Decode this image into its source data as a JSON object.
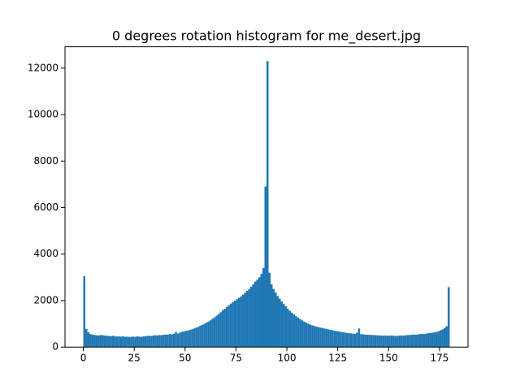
{
  "chart_data": {
    "type": "histogram",
    "title": "0 degrees rotation histogram for me_desert.jpg",
    "color": "#1f77b4",
    "bins": [
      0,
      1,
      2,
      3,
      4,
      5,
      6,
      7,
      8,
      9,
      10,
      11,
      12,
      13,
      14,
      15,
      16,
      17,
      18,
      19,
      20,
      21,
      22,
      23,
      24,
      25,
      26,
      27,
      28,
      29,
      30,
      31,
      32,
      33,
      34,
      35,
      36,
      37,
      38,
      39,
      40,
      41,
      42,
      43,
      44,
      45,
      46,
      47,
      48,
      49,
      50,
      51,
      52,
      53,
      54,
      55,
      56,
      57,
      58,
      59,
      60,
      61,
      62,
      63,
      64,
      65,
      66,
      67,
      68,
      69,
      70,
      71,
      72,
      73,
      74,
      75,
      76,
      77,
      78,
      79,
      80,
      81,
      82,
      83,
      84,
      85,
      86,
      87,
      88,
      89,
      90,
      91,
      92,
      93,
      94,
      95,
      96,
      97,
      98,
      99,
      100,
      101,
      102,
      103,
      104,
      105,
      106,
      107,
      108,
      109,
      110,
      111,
      112,
      113,
      114,
      115,
      116,
      117,
      118,
      119,
      120,
      121,
      122,
      123,
      124,
      125,
      126,
      127,
      128,
      129,
      130,
      131,
      132,
      133,
      134,
      135,
      136,
      137,
      138,
      139,
      140,
      141,
      142,
      143,
      144,
      145,
      146,
      147,
      148,
      149,
      150,
      151,
      152,
      153,
      154,
      155,
      156,
      157,
      158,
      159,
      160,
      161,
      162,
      163,
      164,
      165,
      166,
      167,
      168,
      169,
      170,
      171,
      172,
      173,
      174,
      175,
      176,
      177,
      178,
      179,
      180
    ],
    "values": [
      3050,
      780,
      640,
      560,
      540,
      520,
      510,
      500,
      520,
      510,
      500,
      490,
      480,
      470,
      490,
      470,
      460,
      460,
      450,
      470,
      440,
      450,
      440,
      440,
      450,
      440,
      460,
      450,
      440,
      460,
      470,
      480,
      490,
      480,
      500,
      510,
      500,
      520,
      510,
      530,
      540,
      530,
      560,
      550,
      570,
      650,
      580,
      620,
      660,
      680,
      700,
      720,
      740,
      770,
      800,
      840,
      870,
      920,
      960,
      1000,
      1050,
      1100,
      1150,
      1220,
      1280,
      1350,
      1420,
      1500,
      1580,
      1650,
      1730,
      1800,
      1870,
      1940,
      2000,
      2060,
      2120,
      2180,
      2260,
      2340,
      2420,
      2500,
      2600,
      2700,
      2820,
      2900,
      3000,
      3150,
      3400,
      6900,
      12300,
      3200,
      2700,
      2500,
      2350,
      2200,
      2080,
      1960,
      1850,
      1750,
      1650,
      1560,
      1480,
      1400,
      1330,
      1270,
      1210,
      1150,
      1100,
      1050,
      1010,
      970,
      940,
      910,
      880,
      860,
      840,
      820,
      800,
      780,
      760,
      740,
      720,
      700,
      690,
      670,
      660,
      640,
      630,
      610,
      600,
      590,
      580,
      570,
      620,
      800,
      560,
      550,
      540,
      530,
      530,
      520,
      520,
      510,
      510,
      500,
      500,
      490,
      500,
      490,
      490,
      500,
      490,
      480,
      490,
      490,
      500,
      490,
      510,
      520,
      520,
      530,
      540,
      530,
      550,
      560,
      570,
      560,
      580,
      600,
      610,
      620,
      640,
      650,
      680,
      720,
      760,
      820,
      900,
      2580
    ],
    "xlim": [
      -9,
      189
    ],
    "ylim": [
      0,
      12915
    ],
    "xticks": [
      0,
      25,
      50,
      75,
      100,
      125,
      150,
      175
    ],
    "yticks": [
      0,
      2000,
      4000,
      6000,
      8000,
      10000,
      12000
    ]
  }
}
